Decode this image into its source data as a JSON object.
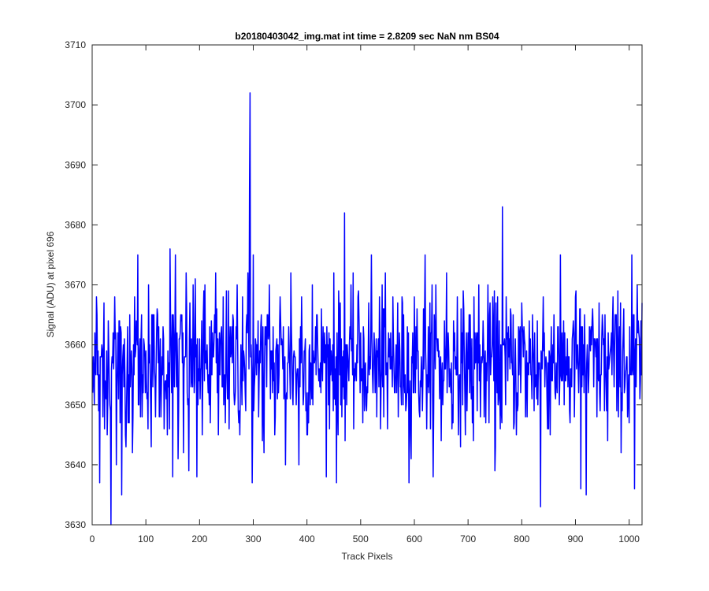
{
  "chart_data": {
    "type": "line",
    "title": "b20180403042_img.mat int time = 2.8209 sec  NaN nm BS04",
    "xlabel": "Track Pixels",
    "ylabel": "Signal (ADU) at pixel 696",
    "xlim": [
      0,
      1024
    ],
    "ylim": [
      3630,
      3710
    ],
    "xticks": [
      0,
      100,
      200,
      300,
      400,
      500,
      600,
      700,
      800,
      900,
      1000
    ],
    "yticks": [
      3630,
      3640,
      3650,
      3660,
      3670,
      3680,
      3690,
      3700,
      3710
    ],
    "grid": false,
    "legend": "none",
    "series_color": "#0000ff",
    "series": [
      {
        "n_points": 1024,
        "baseline": 3657,
        "noise_std": 5.5,
        "points": [
          [
            1,
            3652
          ],
          [
            2,
            3658
          ],
          [
            4,
            3650
          ],
          [
            6,
            3656
          ],
          [
            8,
            3668
          ],
          [
            10,
            3655
          ],
          [
            12,
            3649
          ],
          [
            14,
            3637
          ],
          [
            16,
            3658
          ],
          [
            18,
            3660
          ],
          [
            20,
            3648
          ],
          [
            22,
            3667
          ],
          [
            25,
            3652
          ],
          [
            28,
            3645
          ],
          [
            30,
            3664
          ],
          [
            33,
            3650
          ],
          [
            35,
            3630
          ],
          [
            38,
            3657
          ],
          [
            42,
            3668
          ],
          [
            45,
            3640
          ],
          [
            48,
            3662
          ],
          [
            52,
            3647
          ],
          [
            55,
            3635
          ],
          [
            58,
            3660
          ],
          [
            62,
            3645
          ],
          [
            70,
            3665
          ],
          [
            75,
            3642
          ],
          [
            82,
            3664
          ],
          [
            85,
            3675
          ],
          [
            90,
            3648
          ],
          [
            100,
            3659
          ],
          [
            105,
            3670
          ],
          [
            110,
            3643
          ],
          [
            120,
            3662
          ],
          [
            125,
            3648
          ],
          [
            130,
            3658
          ],
          [
            140,
            3645
          ],
          [
            145,
            3676
          ],
          [
            150,
            3638
          ],
          [
            155,
            3675
          ],
          [
            160,
            3641
          ],
          [
            165,
            3665
          ],
          [
            170,
            3642
          ],
          [
            175,
            3672
          ],
          [
            180,
            3639
          ],
          [
            188,
            3670
          ],
          [
            195,
            3638
          ],
          [
            200,
            3661
          ],
          [
            205,
            3645
          ],
          [
            210,
            3670
          ],
          [
            220,
            3647
          ],
          [
            230,
            3672
          ],
          [
            235,
            3645
          ],
          [
            240,
            3662
          ],
          [
            245,
            3650
          ],
          [
            250,
            3669
          ],
          [
            255,
            3646
          ],
          [
            260,
            3663
          ],
          [
            265,
            3650
          ],
          [
            270,
            3670
          ],
          [
            275,
            3645
          ],
          [
            280,
            3668
          ],
          [
            285,
            3652
          ],
          [
            290,
            3672
          ],
          [
            293,
            3686
          ],
          [
            294,
            3702
          ],
          [
            296,
            3660
          ],
          [
            298,
            3637
          ],
          [
            300,
            3675
          ],
          [
            305,
            3660
          ],
          [
            310,
            3648
          ],
          [
            315,
            3665
          ],
          [
            320,
            3642
          ],
          [
            330,
            3670
          ],
          [
            340,
            3645
          ],
          [
            350,
            3668
          ],
          [
            360,
            3640
          ],
          [
            370,
            3672
          ],
          [
            380,
            3650
          ],
          [
            385,
            3640
          ],
          [
            390,
            3668
          ],
          [
            400,
            3645
          ],
          [
            410,
            3670
          ],
          [
            420,
            3660
          ],
          [
            430,
            3663
          ],
          [
            440,
            3650
          ],
          [
            450,
            3672
          ],
          [
            455,
            3637
          ],
          [
            460,
            3665
          ],
          [
            465,
            3648
          ],
          [
            470,
            3682
          ],
          [
            475,
            3660
          ],
          [
            485,
            3655
          ],
          [
            495,
            3668
          ],
          [
            500,
            3662
          ],
          [
            510,
            3650
          ],
          [
            520,
            3675
          ],
          [
            530,
            3648
          ],
          [
            540,
            3670
          ],
          [
            550,
            3646
          ],
          [
            560,
            3668
          ],
          [
            570,
            3648
          ],
          [
            580,
            3665
          ],
          [
            585,
            3650
          ],
          [
            590,
            3637
          ],
          [
            600,
            3668
          ],
          [
            610,
            3648
          ],
          [
            620,
            3675
          ],
          [
            630,
            3646
          ],
          [
            640,
            3670
          ],
          [
            650,
            3644
          ],
          [
            660,
            3672
          ],
          [
            670,
            3646
          ],
          [
            680,
            3668
          ],
          [
            690,
            3650
          ],
          [
            700,
            3662
          ],
          [
            710,
            3644
          ],
          [
            720,
            3670
          ],
          [
            730,
            3648
          ],
          [
            740,
            3665
          ],
          [
            750,
            3639
          ],
          [
            755,
            3668
          ],
          [
            760,
            3646
          ],
          [
            764,
            3683
          ],
          [
            770,
            3650
          ],
          [
            780,
            3665
          ],
          [
            790,
            3645
          ],
          [
            800,
            3667
          ],
          [
            810,
            3648
          ],
          [
            820,
            3665
          ],
          [
            830,
            3650
          ],
          [
            835,
            3633
          ],
          [
            840,
            3668
          ],
          [
            850,
            3646
          ],
          [
            860,
            3665
          ],
          [
            870,
            3650
          ],
          [
            880,
            3662
          ],
          [
            890,
            3647
          ],
          [
            900,
            3668
          ],
          [
            910,
            3636
          ],
          [
            915,
            3660
          ],
          [
            920,
            3635
          ],
          [
            930,
            3660
          ],
          [
            940,
            3648
          ],
          [
            950,
            3665
          ],
          [
            960,
            3644
          ],
          [
            970,
            3668
          ],
          [
            980,
            3648
          ],
          [
            990,
            3666
          ],
          [
            1000,
            3647
          ],
          [
            1005,
            3675
          ],
          [
            1010,
            3636
          ],
          [
            1015,
            3670
          ],
          [
            1020,
            3651
          ],
          [
            1024,
            3667
          ]
        ]
      }
    ]
  }
}
